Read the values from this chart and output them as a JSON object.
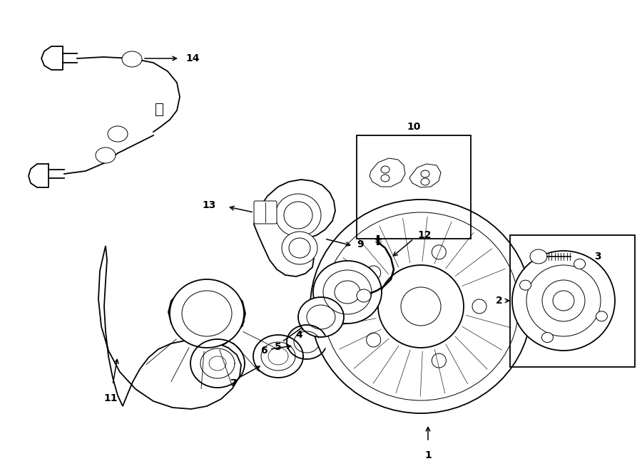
{
  "bg_color": "#ffffff",
  "line_color": "#000000",
  "lw": 1.3,
  "tlw": 0.7,
  "fig_w": 9.0,
  "fig_h": 6.61,
  "dpi": 100
}
